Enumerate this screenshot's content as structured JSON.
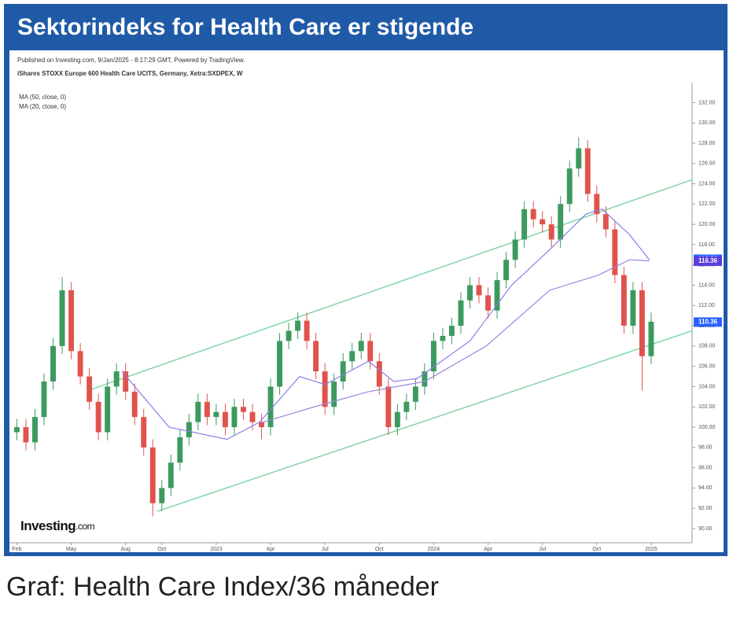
{
  "chart_data": {
    "type": "candlestick",
    "title": "Sektorindeks for Health Care er stigende",
    "published": "Published on Investing.com, 9/Jan/2025 - 8:17:29 GMT, Powered by TradingView.",
    "subtitle": "iShares STOXX Europe 600 Health Care UCITS, Germany, Xetra:SXDPEX, W",
    "caption": "Graf: Health Care Index/36 måneder",
    "logo": {
      "name": "Investing",
      "suffix": ".com"
    },
    "up_color": "#3c9a5f",
    "down_color": "#e0534d",
    "x": [
      1,
      1.5,
      2,
      2.5,
      3,
      3.5,
      4,
      4.5,
      5,
      5.5,
      6,
      6.5,
      7,
      7.5,
      8,
      8.5,
      9,
      9.5,
      10,
      10.5,
      11,
      11.5,
      12,
      12.5,
      13,
      13.5,
      14,
      14.5,
      15,
      15.5,
      16,
      16.5,
      17,
      17.5,
      18,
      18.5,
      19,
      19.5,
      20,
      20.5,
      21,
      21.5,
      22,
      22.5,
      23,
      23.5,
      24,
      24.5,
      25,
      25.5,
      26,
      26.5,
      27,
      27.5,
      28,
      28.5,
      29,
      29.5,
      30,
      30.5,
      31,
      31.5,
      32,
      32.5,
      33,
      33.5,
      34,
      34.5,
      35,
      35.5,
      36
    ],
    "open": [
      99.5,
      100,
      98.5,
      101,
      104.5,
      108,
      113.5,
      107.5,
      105,
      102.5,
      99.5,
      104,
      105.5,
      103.5,
      101,
      98,
      92.5,
      94,
      96.5,
      99,
      100.5,
      102.5,
      101,
      101.5,
      100,
      102,
      101.5,
      100.5,
      100,
      104,
      108.5,
      109.5,
      110.5,
      108.5,
      105.5,
      102,
      104.5,
      106.5,
      107.5,
      108.5,
      106.5,
      104,
      100,
      101.5,
      102.5,
      104,
      105.5,
      108.5,
      109,
      110,
      112.5,
      114,
      113,
      111.5,
      114.5,
      116.5,
      118.5,
      121.5,
      120.5,
      120,
      118.5,
      122,
      125.5,
      127.5,
      123,
      121,
      119.5,
      115,
      110,
      113.5,
      107
    ],
    "high": [
      100.8,
      100.8,
      101.8,
      105.3,
      108.8,
      114.8,
      114.3,
      108.3,
      105.8,
      103.3,
      104.8,
      106.3,
      106.3,
      104.3,
      101.8,
      98.8,
      94.8,
      97.3,
      99.8,
      101.3,
      103.3,
      103.3,
      102.3,
      102.3,
      102.8,
      102.8,
      102.3,
      101.3,
      104.8,
      109.3,
      110.3,
      111.3,
      111.3,
      109.3,
      106.3,
      105.3,
      107.3,
      108.3,
      109.3,
      109.3,
      107.3,
      104.8,
      102.3,
      103.3,
      104.8,
      106.3,
      109.3,
      109.8,
      110.8,
      113.3,
      114.8,
      114.8,
      113.8,
      115.3,
      117.3,
      119.3,
      122.3,
      122.3,
      121.3,
      120.8,
      122.8,
      126.3,
      128.6,
      128.3,
      123.8,
      121.8,
      120.3,
      115.8,
      114.3,
      114.3,
      111.3
    ],
    "low": [
      98.7,
      97.7,
      97.7,
      100.2,
      103.7,
      107.2,
      106.7,
      104.2,
      101.7,
      98.7,
      98.7,
      103.2,
      102.7,
      100.2,
      97.2,
      91.2,
      91.7,
      93.2,
      95.7,
      98.2,
      99.7,
      100.2,
      100.2,
      99.2,
      99.2,
      100.7,
      99.7,
      98.8,
      99.2,
      103.2,
      107.7,
      108.7,
      107.7,
      104.7,
      101.2,
      101.2,
      103.7,
      105.7,
      106.7,
      105.7,
      103.2,
      99.2,
      99.2,
      100.7,
      101.7,
      103.2,
      104.7,
      107.7,
      108.2,
      109.2,
      111.7,
      112.2,
      110.7,
      110.7,
      113.7,
      115.7,
      117.7,
      119.7,
      119.2,
      117.7,
      117.7,
      121.2,
      124.7,
      122.2,
      120.2,
      118.7,
      114.2,
      109.2,
      109.2,
      103.6,
      106.2
    ],
    "close": [
      100,
      98.5,
      101,
      104.5,
      108,
      113.5,
      107.5,
      105,
      102.5,
      99.5,
      104,
      105.5,
      103.5,
      101,
      98,
      92.5,
      94,
      96.5,
      99,
      100.5,
      102.5,
      101,
      101.5,
      100,
      102,
      101.5,
      100.5,
      100,
      104,
      108.5,
      109.5,
      110.5,
      108.5,
      105.5,
      102,
      104.5,
      106.5,
      107.5,
      108.5,
      106.5,
      104,
      100,
      101.5,
      102.5,
      104,
      105.5,
      108.5,
      109,
      110,
      112.5,
      114,
      113,
      111.5,
      114.5,
      116.5,
      118.5,
      121.5,
      120.5,
      120,
      118.5,
      122,
      125.5,
      127.5,
      123,
      121,
      119.5,
      115,
      110,
      113.5,
      107,
      110.4
    ],
    "ma": [
      {
        "name": "MA (50, close, 0)",
        "color": "#9a86e0",
        "x": [
          14.6,
          17.4,
          20.4,
          23.5,
          26.9,
          30.4,
          33.1,
          34.8,
          35.9
        ],
        "values": [
          100.5,
          102,
          103.5,
          104.5,
          108,
          113.5,
          115,
          116.5,
          116.4
        ]
      },
      {
        "name": "MA (20, close, 0)",
        "color": "#8c7fe8",
        "x": [
          6.8,
          9.4,
          12.6,
          14.4,
          16.6,
          18,
          20.4,
          21.8,
          23.1,
          26,
          28.3,
          30.4,
          32.4,
          33.3,
          34.8,
          35.9
        ],
        "values": [
          105.5,
          100,
          98.8,
          100.5,
          105,
          104.2,
          106.5,
          104.5,
          104.8,
          108.5,
          114,
          117.5,
          121,
          121.5,
          119,
          116.5
        ]
      }
    ],
    "channels": [
      {
        "color": "#6fd09c",
        "x": [
          5.06,
          38.26
        ],
        "values": [
          103.7,
          124.4
        ]
      },
      {
        "color": "#6fd09c",
        "x": [
          8.75,
          38.26
        ],
        "values": [
          91.7,
          109.5
        ]
      }
    ],
    "price_labels": [
      {
        "value": 116.56,
        "color": "#2962ff"
      },
      {
        "value": 116.36,
        "color": "#5a3fd8"
      },
      {
        "value": 110.36,
        "color": "#2962ff"
      }
    ],
    "xlim": [
      0.59,
      38.26
    ],
    "ylim": [
      88.6,
      133.2
    ],
    "xticks": [
      {
        "value": 1,
        "label": "Feb"
      },
      {
        "value": 4,
        "label": "May"
      },
      {
        "value": 7,
        "label": "Aug"
      },
      {
        "value": 9,
        "label": "Oct"
      },
      {
        "value": 12,
        "label": "2023"
      },
      {
        "value": 15,
        "label": "Apr"
      },
      {
        "value": 18,
        "label": "Jul"
      },
      {
        "value": 21,
        "label": "Oct"
      },
      {
        "value": 24,
        "label": "2024"
      },
      {
        "value": 27,
        "label": "Apr"
      },
      {
        "value": 30,
        "label": "Jul"
      },
      {
        "value": 33,
        "label": "Oct"
      },
      {
        "value": 36,
        "label": "2025"
      }
    ],
    "yticks": [
      {
        "value": 90,
        "label": "90.00"
      },
      {
        "value": 92,
        "label": "92.00"
      },
      {
        "value": 94,
        "label": "94.00"
      },
      {
        "value": 96,
        "label": "96.00"
      },
      {
        "value": 98,
        "label": "98.00"
      },
      {
        "value": 100,
        "label": "100.00"
      },
      {
        "value": 102,
        "label": "102.00"
      },
      {
        "value": 104,
        "label": "104.00"
      },
      {
        "value": 106,
        "label": "106.00"
      },
      {
        "value": 108,
        "label": "108.00"
      },
      {
        "value": 110,
        "label": "110.00"
      },
      {
        "value": 112,
        "label": "112.00"
      },
      {
        "value": 114,
        "label": "114.00"
      },
      {
        "value": 116,
        "label": "116.00"
      },
      {
        "value": 118,
        "label": "118.00"
      },
      {
        "value": 120,
        "label": "120.00"
      },
      {
        "value": 122,
        "label": "122.00"
      },
      {
        "value": 124,
        "label": "124.00"
      },
      {
        "value": 126,
        "label": "126.00"
      },
      {
        "value": 128,
        "label": "128.00"
      },
      {
        "value": 130,
        "label": "130.00"
      },
      {
        "value": 132,
        "label": "132.00"
      }
    ]
  }
}
